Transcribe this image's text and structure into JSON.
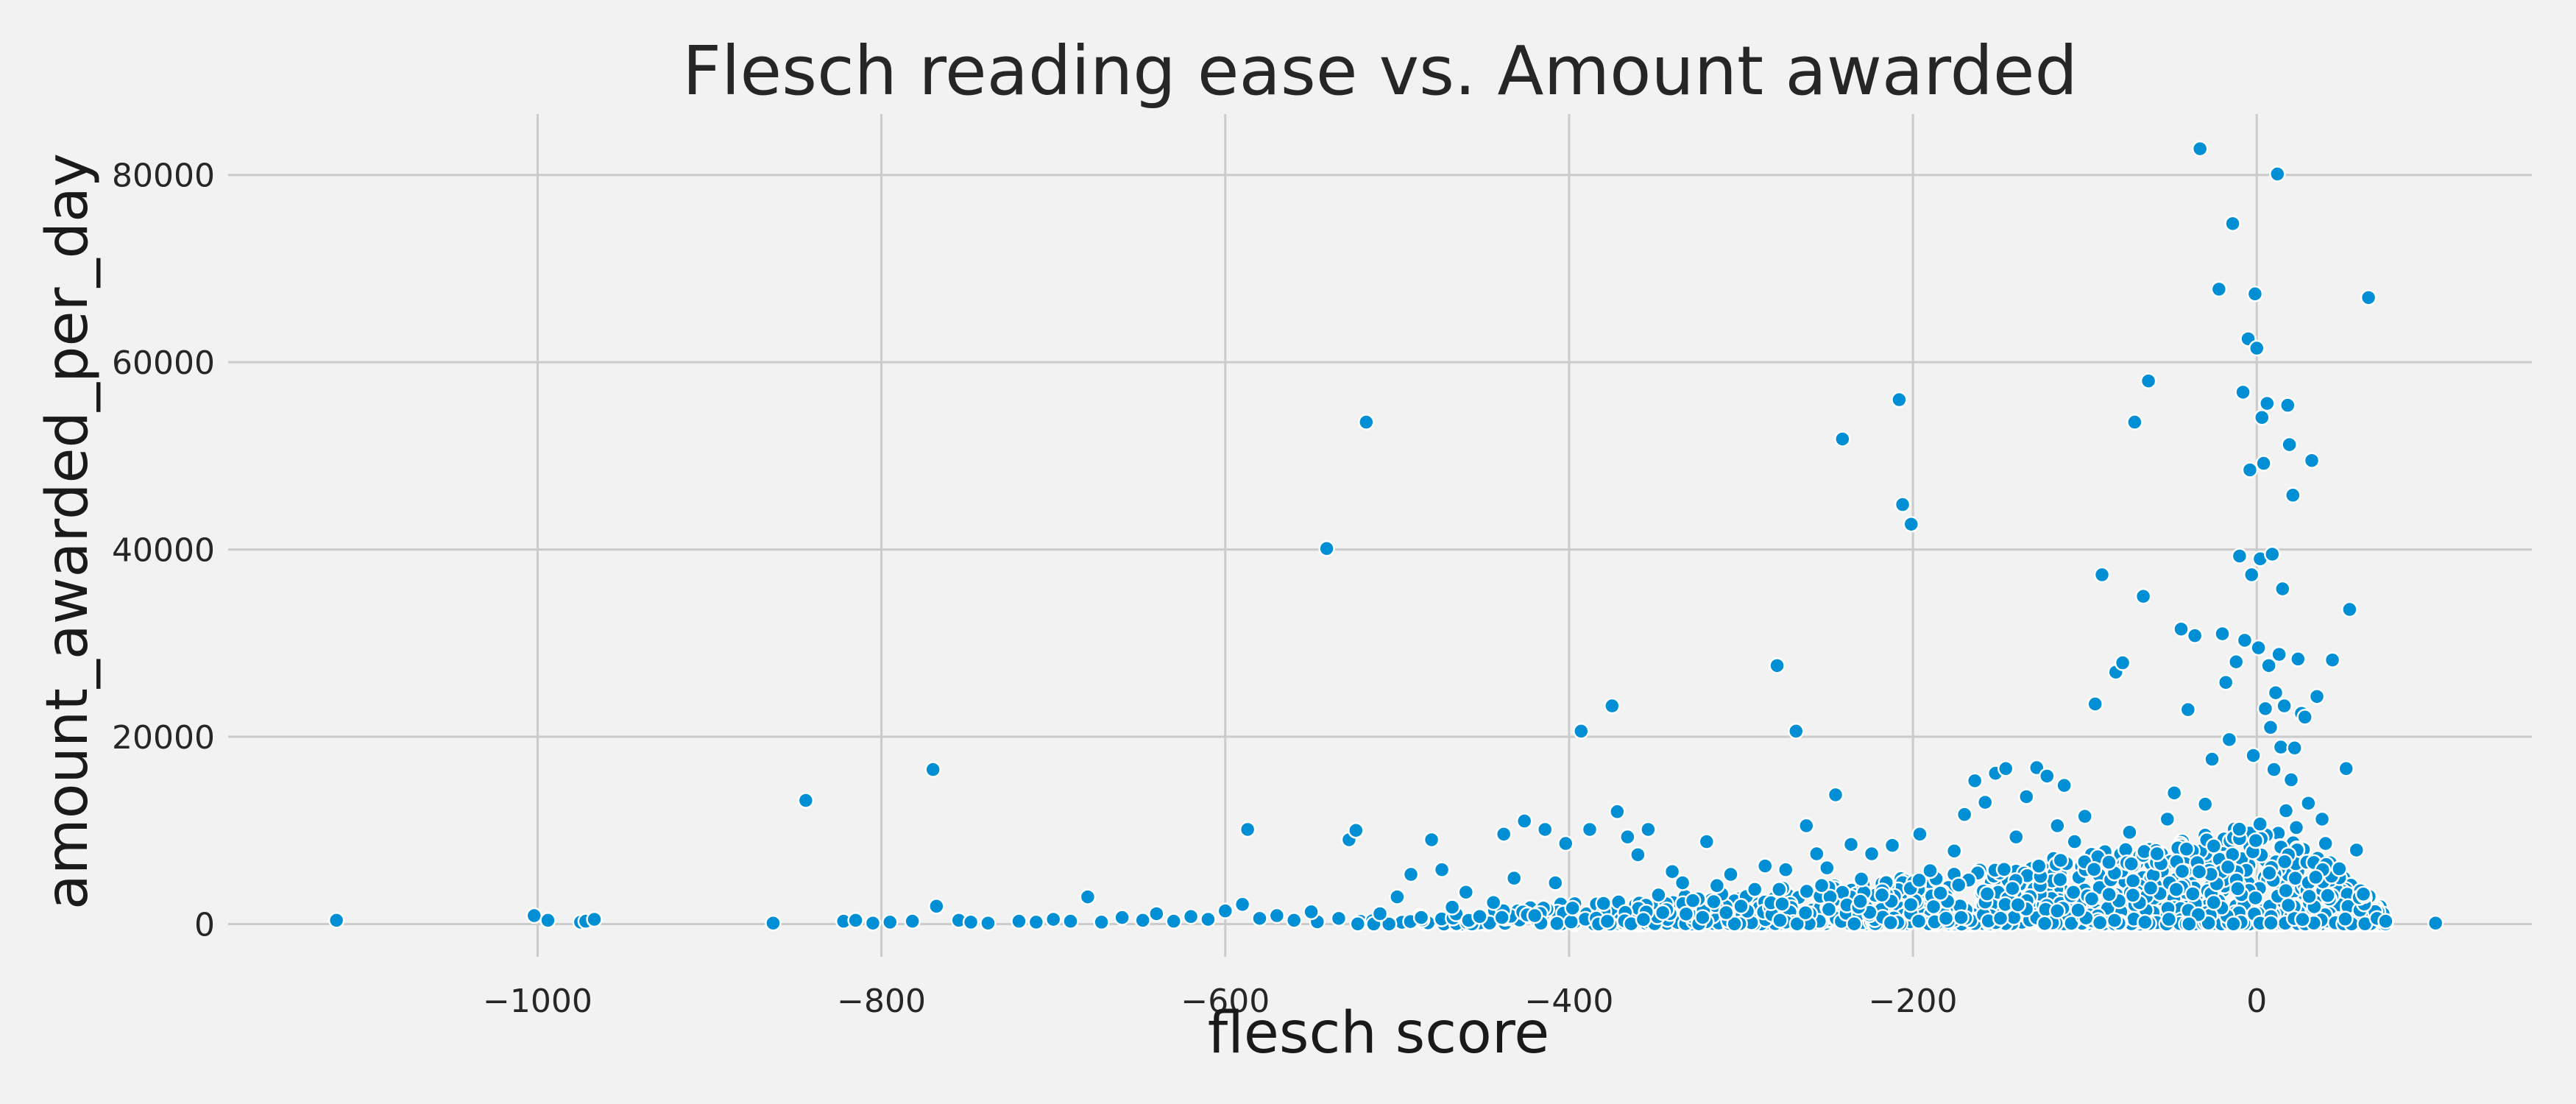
{
  "chart_data": {
    "type": "scatter",
    "title": "Flesch reading ease vs. Amount awarded",
    "xlabel": "flesch score",
    "ylabel": "amount_awarded_per_day",
    "xlim": [
      -1180,
      160
    ],
    "ylim": [
      -3500,
      86500
    ],
    "xticks": [
      -1000,
      -800,
      -600,
      -400,
      -200,
      0
    ],
    "xtick_labels": [
      "−1000",
      "−800",
      "−600",
      "−400",
      "−200",
      "0"
    ],
    "yticks": [
      0,
      20000,
      40000,
      60000,
      80000
    ],
    "ytick_labels": [
      "0",
      "20000",
      "40000",
      "60000",
      "80000"
    ],
    "grid": true,
    "colors": {
      "marker": "#008fd5",
      "marker_edge": "#ffffff",
      "background": "#f2f2f2",
      "grid": "#cbcbcb"
    },
    "series": [
      {
        "points": [
          [
            -1117,
            400
          ],
          [
            -1002,
            900
          ],
          [
            -994,
            400
          ],
          [
            -975,
            200
          ],
          [
            -972,
            300
          ],
          [
            -967,
            500
          ],
          [
            -863,
            100
          ],
          [
            -844,
            13200
          ],
          [
            -822,
            300
          ],
          [
            -815,
            400
          ],
          [
            -805,
            100
          ],
          [
            -795,
            200
          ],
          [
            -782,
            300
          ],
          [
            -770,
            16500
          ],
          [
            -768,
            1900
          ],
          [
            -755,
            400
          ],
          [
            -748,
            200
          ],
          [
            -738,
            100
          ],
          [
            -720,
            300
          ],
          [
            -710,
            200
          ],
          [
            -700,
            500
          ],
          [
            -690,
            300
          ],
          [
            -680,
            2900
          ],
          [
            -672,
            200
          ],
          [
            -660,
            700
          ],
          [
            -648,
            400
          ],
          [
            -640,
            1100
          ],
          [
            -630,
            300
          ],
          [
            -620,
            800
          ],
          [
            -610,
            500
          ],
          [
            -600,
            1400
          ],
          [
            -590,
            2100
          ],
          [
            -587,
            10100
          ],
          [
            -580,
            600
          ],
          [
            -570,
            900
          ],
          [
            -560,
            400
          ],
          [
            -550,
            1300
          ],
          [
            -541,
            40100
          ],
          [
            -534,
            600
          ],
          [
            -528,
            9000
          ],
          [
            -524,
            10000
          ],
          [
            -518,
            53600
          ],
          [
            -510,
            1100
          ],
          [
            -500,
            2900
          ],
          [
            -492,
            5300
          ],
          [
            -486,
            700
          ],
          [
            -480,
            9000
          ],
          [
            -474,
            5800
          ],
          [
            -468,
            1800
          ],
          [
            -460,
            3400
          ],
          [
            -452,
            800
          ],
          [
            -444,
            2300
          ],
          [
            -438,
            9600
          ],
          [
            -432,
            4900
          ],
          [
            -426,
            11000
          ],
          [
            -420,
            900
          ],
          [
            -414,
            10100
          ],
          [
            -408,
            4400
          ],
          [
            -402,
            8600
          ],
          [
            -398,
            1700
          ],
          [
            -393,
            20600
          ],
          [
            -388,
            10100
          ],
          [
            -380,
            2200
          ],
          [
            -375,
            23300
          ],
          [
            -372,
            12000
          ],
          [
            -366,
            9300
          ],
          [
            -360,
            7400
          ],
          [
            -354,
            10100
          ],
          [
            -348,
            3100
          ],
          [
            -340,
            5600
          ],
          [
            -334,
            4400
          ],
          [
            -328,
            2500
          ],
          [
            -320,
            8800
          ],
          [
            -314,
            4100
          ],
          [
            -306,
            5300
          ],
          [
            -300,
            1900
          ],
          [
            -292,
            3700
          ],
          [
            -286,
            6200
          ],
          [
            -279,
            27600
          ],
          [
            -274,
            5800
          ],
          [
            -268,
            20600
          ],
          [
            -262,
            10500
          ],
          [
            -256,
            7500
          ],
          [
            -250,
            6000
          ],
          [
            -245,
            13800
          ],
          [
            -241,
            51800
          ],
          [
            -236,
            8500
          ],
          [
            -230,
            4800
          ],
          [
            -224,
            7500
          ],
          [
            -218,
            3100
          ],
          [
            -212,
            8400
          ],
          [
            -208,
            56000
          ],
          [
            -206,
            44800
          ],
          [
            -201,
            42700
          ],
          [
            -196,
            9600
          ],
          [
            -190,
            5700
          ],
          [
            -184,
            3300
          ],
          [
            -176,
            7800
          ],
          [
            -170,
            11700
          ],
          [
            -164,
            15300
          ],
          [
            -158,
            13000
          ],
          [
            -152,
            16100
          ],
          [
            -146,
            16600
          ],
          [
            -140,
            9300
          ],
          [
            -134,
            13600
          ],
          [
            -128,
            16700
          ],
          [
            -122,
            15800
          ],
          [
            -116,
            10500
          ],
          [
            -112,
            14800
          ],
          [
            -106,
            8800
          ],
          [
            -100,
            11500
          ],
          [
            -94,
            23500
          ],
          [
            -90,
            37300
          ],
          [
            -86,
            6600
          ],
          [
            -82,
            26900
          ],
          [
            -78,
            27900
          ],
          [
            -74,
            9800
          ],
          [
            -71,
            53600
          ],
          [
            -66,
            35000
          ],
          [
            -63,
            58000
          ],
          [
            -58,
            7500
          ],
          [
            -52,
            11200
          ],
          [
            -48,
            14000
          ],
          [
            -44,
            31500
          ],
          [
            -40,
            22900
          ],
          [
            -36,
            30800
          ],
          [
            -33,
            82800
          ],
          [
            -30,
            12800
          ],
          [
            -26,
            17600
          ],
          [
            -22,
            67800
          ],
          [
            -20,
            31000
          ],
          [
            -18,
            25800
          ],
          [
            -16,
            19700
          ],
          [
            -14,
            74800
          ],
          [
            -12,
            28000
          ],
          [
            -10,
            39300
          ],
          [
            -8,
            56800
          ],
          [
            -7,
            30300
          ],
          [
            -5,
            62500
          ],
          [
            -4,
            48500
          ],
          [
            -3,
            37300
          ],
          [
            -2,
            18000
          ],
          [
            -1,
            67300
          ],
          [
            0,
            61500
          ],
          [
            1,
            29500
          ],
          [
            2,
            39000
          ],
          [
            3,
            54100
          ],
          [
            4,
            49200
          ],
          [
            5,
            23000
          ],
          [
            6,
            55600
          ],
          [
            7,
            27600
          ],
          [
            8,
            21000
          ],
          [
            9,
            39500
          ],
          [
            10,
            16500
          ],
          [
            11,
            24700
          ],
          [
            12,
            80100
          ],
          [
            13,
            28800
          ],
          [
            14,
            18900
          ],
          [
            15,
            35800
          ],
          [
            16,
            23300
          ],
          [
            17,
            12100
          ],
          [
            18,
            55400
          ],
          [
            19,
            51200
          ],
          [
            20,
            15400
          ],
          [
            21,
            45800
          ],
          [
            22,
            18800
          ],
          [
            23,
            10300
          ],
          [
            24,
            28300
          ],
          [
            26,
            22500
          ],
          [
            28,
            22100
          ],
          [
            30,
            12900
          ],
          [
            32,
            49500
          ],
          [
            35,
            24300
          ],
          [
            38,
            11200
          ],
          [
            40,
            8600
          ],
          [
            44,
            28200
          ],
          [
            48,
            5900
          ],
          [
            52,
            16600
          ],
          [
            54,
            33600
          ],
          [
            58,
            7900
          ],
          [
            62,
            3200
          ],
          [
            65,
            66900
          ],
          [
            70,
            600
          ],
          [
            75,
            300
          ],
          [
            104,
            100
          ]
        ],
        "dense_band": {
          "x_range": [
            -560,
            75
          ],
          "y_max_by_x": [
            [
              -560,
              1200
            ],
            [
              -400,
              2200
            ],
            [
              -300,
              3500
            ],
            [
              -200,
              5000
            ],
            [
              -100,
              7500
            ],
            [
              -40,
              9000
            ],
            [
              0,
              11000
            ],
            [
              40,
              7000
            ],
            [
              75,
              1500
            ]
          ]
        }
      }
    ]
  }
}
